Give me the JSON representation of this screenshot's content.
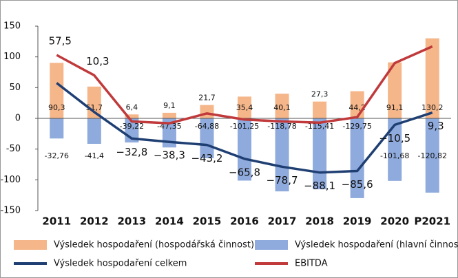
{
  "chart_data": {
    "type": "bar-line",
    "categories": [
      "2011",
      "2012",
      "2013",
      "2014",
      "2015",
      "2016",
      "2017",
      "2018",
      "2019",
      "2020",
      "P2021"
    ],
    "series": [
      {
        "name": "Výsledek hospodaření (hospodářská činnost)",
        "type": "bar",
        "color": "#f5b68a",
        "values": [
          90.3,
          51.7,
          6.4,
          9.1,
          21.7,
          35.4,
          40.1,
          27.3,
          44.2,
          91.1,
          130.2
        ],
        "value_labels": [
          "90,3",
          "51,7",
          "6,4",
          "9,1",
          "21,7",
          "35,4",
          "40,1",
          "27,3",
          "44,2",
          "91,1",
          "130,2"
        ]
      },
      {
        "name": "Výsledek hospodaření (hlavní činnost)",
        "type": "bar",
        "color": "#8faadc",
        "values": [
          -32.76,
          -41.4,
          -39.22,
          -47.35,
          -64.88,
          -101.25,
          -118.78,
          -115.41,
          -129.75,
          -101.68,
          -120.82
        ],
        "value_labels": [
          "-32,76",
          "-41,4",
          "-39,22",
          "-47,35",
          "-64,88",
          "-101,25",
          "-118,78",
          "-115,41",
          "-129,75",
          "-101,68",
          "-120,82"
        ]
      },
      {
        "name": "Výsledek hospodaření celkem",
        "type": "line",
        "color": "#1f3f73",
        "values": [
          57.5,
          10.3,
          -32.8,
          -38.3,
          -43.2,
          -65.8,
          -78.7,
          -88.1,
          -85.6,
          -10.5,
          9.3
        ],
        "value_labels": [
          "57,5",
          "10,3",
          "−32,8",
          "−38,3",
          "−43,2",
          "−65,8",
          "−78,7",
          "−88,1",
          "−85,6",
          "−10,5",
          "9,3"
        ]
      },
      {
        "name": "EBITDA",
        "type": "line",
        "color": "#c0393b",
        "values": [
          103,
          70,
          -5,
          -8,
          8,
          -2,
          -5,
          -7,
          2,
          90,
          117
        ]
      }
    ],
    "ylim": [
      -150,
      150
    ],
    "yticks": [
      -150,
      -100,
      -50,
      0,
      50,
      100,
      150
    ],
    "grid": false
  }
}
